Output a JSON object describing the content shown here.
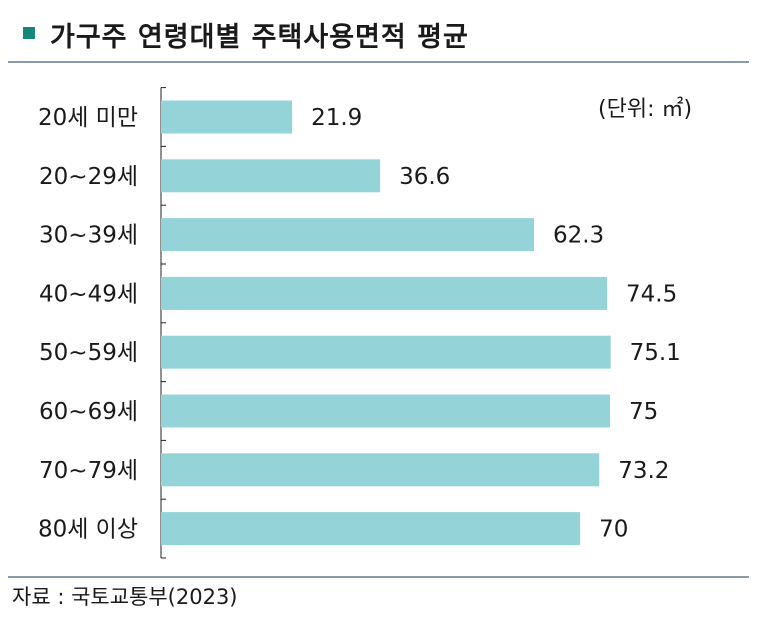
{
  "header": {
    "title": "가구주 연령대별 주택사용면적 평균"
  },
  "footer": {
    "source": "자료 : 국토교통부(2023)"
  },
  "chart_data": {
    "type": "bar",
    "orientation": "horizontal",
    "title": "가구주 연령대별 주택사용면적 평균",
    "unit": "(단위: ㎡)",
    "categories": [
      "20세 미만",
      "20~29세",
      "30~39세",
      "40~49세",
      "50~59세",
      "60~69세",
      "70~79세",
      "80세 이상"
    ],
    "values": [
      21.9,
      36.6,
      62.3,
      74.5,
      75.1,
      75,
      73.2,
      70
    ],
    "value_labels": [
      "21.9",
      "36.6",
      "62.3",
      "74.5",
      "75.1",
      "75",
      "73.2",
      "70"
    ],
    "xlim": [
      0,
      77
    ],
    "grid": false,
    "bar_color": "#94d4d8"
  }
}
